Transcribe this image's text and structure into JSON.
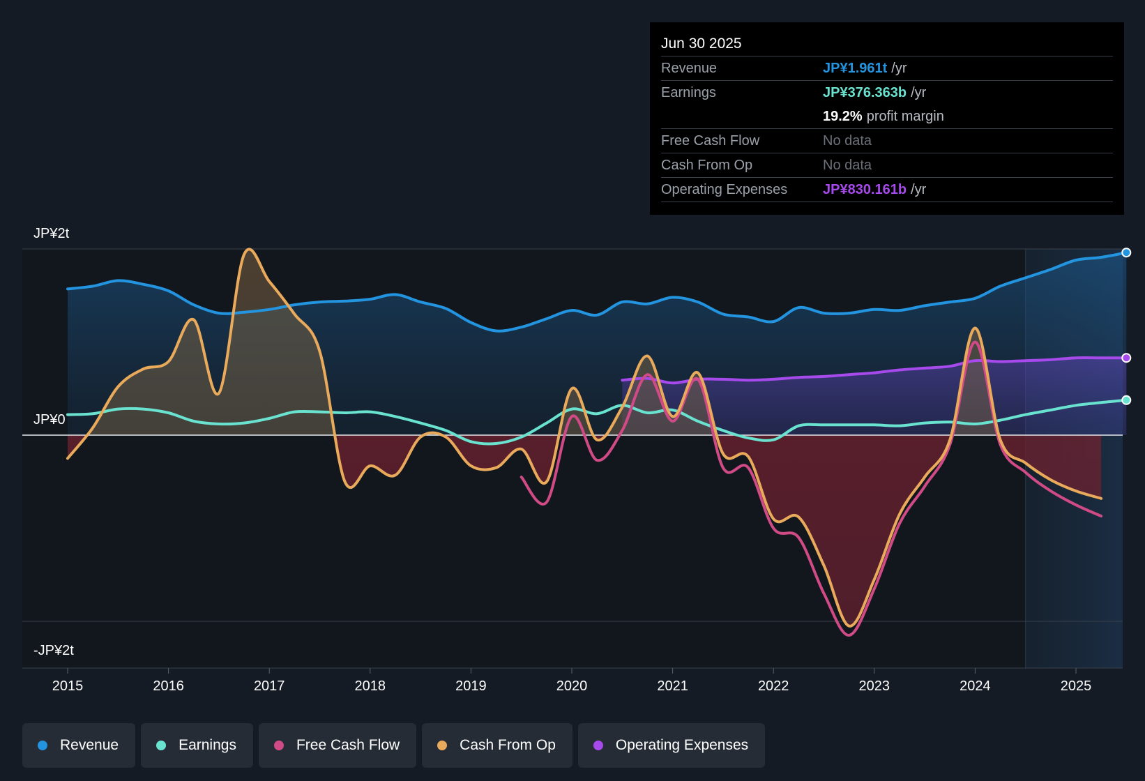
{
  "tooltip": {
    "date": "Jun 30 2025",
    "revenue_label": "Revenue",
    "revenue_value": "JP¥1.961t",
    "earnings_label": "Earnings",
    "earnings_value": "JP¥376.363b",
    "margin_value": "19.2%",
    "margin_text": "profit margin",
    "fcf_label": "Free Cash Flow",
    "fcf_value": "No data",
    "cfo_label": "Cash From Op",
    "cfo_value": "No data",
    "opex_label": "Operating Expenses",
    "opex_value": "JP¥830.161b",
    "per_year": "/yr"
  },
  "legend": {
    "revenue": "Revenue",
    "earnings": "Earnings",
    "fcf": "Free Cash Flow",
    "cfo": "Cash From Op",
    "opex": "Operating Expenses"
  },
  "colors": {
    "background": "#151b24",
    "revenue": "#2394df",
    "earnings": "#6ae2d0",
    "fcf": "#d04a86",
    "cfo": "#eaaa5b",
    "opex": "#a64aeb"
  },
  "chart_data": {
    "type": "line",
    "title": "",
    "xlabel": "",
    "ylabel": "",
    "y_unit": "JP¥ trillion",
    "ylim": [
      -2.5,
      2.0
    ],
    "y_ticks": [
      {
        "value": 2.0,
        "label": "JP¥2t"
      },
      {
        "value": 0.0,
        "label": "JP¥0"
      },
      {
        "value": -2.0,
        "label": "-JP¥2t"
      }
    ],
    "x_range": [
      2014.55,
      2025.5
    ],
    "x_ticks": [
      2015,
      2016,
      2017,
      2018,
      2019,
      2020,
      2021,
      2022,
      2023,
      2024,
      2025
    ],
    "forecast_start": 2024.5,
    "series": [
      {
        "name": "Revenue",
        "key": "revenue",
        "points": [
          [
            2015.0,
            1.57
          ],
          [
            2015.25,
            1.6
          ],
          [
            2015.5,
            1.66
          ],
          [
            2015.75,
            1.62
          ],
          [
            2016.0,
            1.55
          ],
          [
            2016.25,
            1.4
          ],
          [
            2016.5,
            1.31
          ],
          [
            2016.75,
            1.32
          ],
          [
            2017.0,
            1.35
          ],
          [
            2017.25,
            1.4
          ],
          [
            2017.5,
            1.43
          ],
          [
            2017.75,
            1.44
          ],
          [
            2018.0,
            1.46
          ],
          [
            2018.25,
            1.51
          ],
          [
            2018.5,
            1.43
          ],
          [
            2018.75,
            1.36
          ],
          [
            2019.0,
            1.21
          ],
          [
            2019.25,
            1.12
          ],
          [
            2019.5,
            1.16
          ],
          [
            2019.75,
            1.25
          ],
          [
            2020.0,
            1.34
          ],
          [
            2020.25,
            1.29
          ],
          [
            2020.5,
            1.43
          ],
          [
            2020.75,
            1.41
          ],
          [
            2021.0,
            1.48
          ],
          [
            2021.25,
            1.43
          ],
          [
            2021.5,
            1.3
          ],
          [
            2021.75,
            1.27
          ],
          [
            2022.0,
            1.22
          ],
          [
            2022.25,
            1.37
          ],
          [
            2022.5,
            1.31
          ],
          [
            2022.75,
            1.31
          ],
          [
            2023.0,
            1.35
          ],
          [
            2023.25,
            1.34
          ],
          [
            2023.5,
            1.39
          ],
          [
            2023.75,
            1.43
          ],
          [
            2024.0,
            1.47
          ],
          [
            2024.25,
            1.6
          ],
          [
            2024.5,
            1.69
          ],
          [
            2024.75,
            1.78
          ],
          [
            2025.0,
            1.88
          ],
          [
            2025.25,
            1.91
          ],
          [
            2025.5,
            1.961
          ]
        ]
      },
      {
        "name": "Earnings",
        "key": "earnings",
        "points": [
          [
            2015.0,
            0.22
          ],
          [
            2015.25,
            0.23
          ],
          [
            2015.5,
            0.28
          ],
          [
            2015.75,
            0.28
          ],
          [
            2016.0,
            0.24
          ],
          [
            2016.25,
            0.15
          ],
          [
            2016.5,
            0.12
          ],
          [
            2016.75,
            0.13
          ],
          [
            2017.0,
            0.18
          ],
          [
            2017.25,
            0.25
          ],
          [
            2017.5,
            0.25
          ],
          [
            2017.75,
            0.24
          ],
          [
            2018.0,
            0.25
          ],
          [
            2018.25,
            0.2
          ],
          [
            2018.5,
            0.13
          ],
          [
            2018.75,
            0.05
          ],
          [
            2019.0,
            -0.07
          ],
          [
            2019.25,
            -0.09
          ],
          [
            2019.5,
            -0.02
          ],
          [
            2019.75,
            0.13
          ],
          [
            2020.0,
            0.28
          ],
          [
            2020.25,
            0.23
          ],
          [
            2020.5,
            0.32
          ],
          [
            2020.75,
            0.24
          ],
          [
            2021.0,
            0.27
          ],
          [
            2021.25,
            0.15
          ],
          [
            2021.5,
            0.05
          ],
          [
            2021.75,
            -0.03
          ],
          [
            2022.0,
            -0.05
          ],
          [
            2022.25,
            0.1
          ],
          [
            2022.5,
            0.11
          ],
          [
            2022.75,
            0.11
          ],
          [
            2023.0,
            0.11
          ],
          [
            2023.25,
            0.1
          ],
          [
            2023.5,
            0.13
          ],
          [
            2023.75,
            0.14
          ],
          [
            2024.0,
            0.12
          ],
          [
            2024.25,
            0.16
          ],
          [
            2024.5,
            0.22
          ],
          [
            2024.75,
            0.27
          ],
          [
            2025.0,
            0.32
          ],
          [
            2025.25,
            0.35
          ],
          [
            2025.5,
            0.376
          ]
        ]
      },
      {
        "name": "Free Cash Flow",
        "key": "fcf",
        "points": [
          [
            2019.5,
            -0.45
          ],
          [
            2019.75,
            -0.72
          ],
          [
            2020.0,
            0.2
          ],
          [
            2020.25,
            -0.27
          ],
          [
            2020.5,
            0.05
          ],
          [
            2020.75,
            0.65
          ],
          [
            2021.0,
            0.15
          ],
          [
            2021.25,
            0.6
          ],
          [
            2021.5,
            -0.35
          ],
          [
            2021.75,
            -0.35
          ],
          [
            2022.0,
            -1.0
          ],
          [
            2022.25,
            -1.1
          ],
          [
            2022.5,
            -1.7
          ],
          [
            2022.75,
            -2.15
          ],
          [
            2023.0,
            -1.65
          ],
          [
            2023.25,
            -0.95
          ],
          [
            2023.5,
            -0.55
          ],
          [
            2023.75,
            -0.1
          ],
          [
            2024.0,
            1.0
          ],
          [
            2024.25,
            -0.1
          ],
          [
            2024.5,
            -0.4
          ],
          [
            2024.75,
            -0.6
          ],
          [
            2025.0,
            -0.75
          ],
          [
            2025.25,
            -0.87
          ]
        ]
      },
      {
        "name": "Cash From Op",
        "key": "cfo",
        "points": [
          [
            2015.0,
            -0.25
          ],
          [
            2015.25,
            0.08
          ],
          [
            2015.5,
            0.52
          ],
          [
            2015.75,
            0.71
          ],
          [
            2016.0,
            0.79
          ],
          [
            2016.25,
            1.24
          ],
          [
            2016.5,
            0.45
          ],
          [
            2016.75,
            1.94
          ],
          [
            2017.0,
            1.65
          ],
          [
            2017.25,
            1.3
          ],
          [
            2017.5,
            0.9
          ],
          [
            2017.75,
            -0.5
          ],
          [
            2018.0,
            -0.33
          ],
          [
            2018.25,
            -0.43
          ],
          [
            2018.5,
            -0.02
          ],
          [
            2018.75,
            -0.02
          ],
          [
            2019.0,
            -0.33
          ],
          [
            2019.25,
            -0.35
          ],
          [
            2019.5,
            -0.15
          ],
          [
            2019.75,
            -0.5
          ],
          [
            2020.0,
            0.5
          ],
          [
            2020.25,
            -0.05
          ],
          [
            2020.5,
            0.3
          ],
          [
            2020.75,
            0.85
          ],
          [
            2021.0,
            0.2
          ],
          [
            2021.25,
            0.67
          ],
          [
            2021.5,
            -0.2
          ],
          [
            2021.75,
            -0.23
          ],
          [
            2022.0,
            -0.9
          ],
          [
            2022.25,
            -0.88
          ],
          [
            2022.5,
            -1.4
          ],
          [
            2022.75,
            -2.05
          ],
          [
            2023.0,
            -1.55
          ],
          [
            2023.25,
            -0.85
          ],
          [
            2023.5,
            -0.45
          ],
          [
            2023.75,
            -0.05
          ],
          [
            2024.0,
            1.15
          ],
          [
            2024.25,
            -0.05
          ],
          [
            2024.5,
            -0.3
          ],
          [
            2024.75,
            -0.48
          ],
          [
            2025.0,
            -0.6
          ],
          [
            2025.25,
            -0.68
          ]
        ]
      },
      {
        "name": "Operating Expenses",
        "key": "opex",
        "points": [
          [
            2020.5,
            0.59
          ],
          [
            2020.75,
            0.61
          ],
          [
            2021.0,
            0.56
          ],
          [
            2021.25,
            0.6
          ],
          [
            2021.5,
            0.6
          ],
          [
            2021.75,
            0.59
          ],
          [
            2022.0,
            0.6
          ],
          [
            2022.25,
            0.62
          ],
          [
            2022.5,
            0.63
          ],
          [
            2022.75,
            0.65
          ],
          [
            2023.0,
            0.67
          ],
          [
            2023.25,
            0.7
          ],
          [
            2023.5,
            0.72
          ],
          [
            2023.75,
            0.74
          ],
          [
            2024.0,
            0.8
          ],
          [
            2024.25,
            0.79
          ],
          [
            2024.5,
            0.8
          ],
          [
            2024.75,
            0.81
          ],
          [
            2025.0,
            0.83
          ],
          [
            2025.25,
            0.83
          ],
          [
            2025.5,
            0.83
          ]
        ]
      }
    ]
  }
}
